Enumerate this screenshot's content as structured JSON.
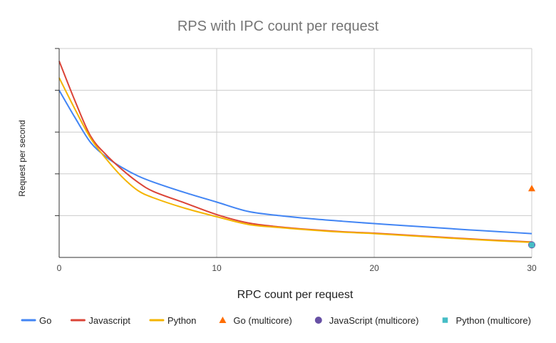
{
  "chart_data": {
    "type": "line",
    "title": "RPS with IPC count per request",
    "xlabel": "RPC count per request",
    "ylabel": "Request per second",
    "xlim": [
      0,
      30
    ],
    "ylim": [
      0,
      100
    ],
    "x_ticks": [
      0,
      10,
      20,
      30
    ],
    "y_tick_labels_shown": false,
    "grid": true,
    "legend_position": "bottom",
    "series": [
      {
        "name": "Go",
        "kind": "line",
        "color": "#4285F4",
        "x": [
          0,
          1,
          2,
          3,
          4,
          5,
          6,
          8,
          10,
          12,
          14,
          16,
          18,
          20,
          22,
          24,
          26,
          28,
          30
        ],
        "y": [
          80,
          67,
          55,
          48,
          43,
          39,
          36,
          31,
          26.5,
          22,
          20,
          18.5,
          17.3,
          16.2,
          15.2,
          14.2,
          13.2,
          12.3,
          11.4
        ]
      },
      {
        "name": "Javascript",
        "kind": "line",
        "color": "#DB4437",
        "x": [
          0,
          1,
          2,
          3,
          4,
          5,
          6,
          8,
          10,
          12,
          14,
          16,
          18,
          20,
          22,
          24,
          26,
          28,
          30
        ],
        "y": [
          94,
          75,
          58,
          49,
          42,
          36,
          31.5,
          26,
          20.5,
          16.5,
          14.6,
          13.3,
          12.3,
          11.6,
          10.7,
          9.8,
          8.9,
          8.1,
          7.4
        ]
      },
      {
        "name": "Python",
        "kind": "line",
        "color": "#F4B400",
        "x": [
          0,
          1,
          2,
          3,
          4,
          5,
          6,
          8,
          10,
          12,
          14,
          16,
          18,
          20,
          22,
          24,
          26,
          28,
          30
        ],
        "y": [
          86,
          71,
          57,
          47,
          38.5,
          32,
          28.5,
          23.5,
          19.5,
          15.8,
          14.3,
          13.1,
          12.1,
          11.4,
          10.5,
          9.6,
          8.7,
          7.9,
          7.2
        ]
      },
      {
        "name": "Go (multicore)",
        "kind": "marker",
        "marker": "triangle",
        "color": "#FF6D01",
        "x": [
          30
        ],
        "y": [
          33
        ]
      },
      {
        "name": "JavaScript (multicore)",
        "kind": "marker",
        "marker": "circle",
        "color": "#6750A4",
        "x": [
          30
        ],
        "y": [
          6
        ]
      },
      {
        "name": "Python (multicore)",
        "kind": "marker",
        "marker": "square",
        "color": "#46BDC6",
        "x": [
          30
        ],
        "y": [
          6
        ]
      }
    ]
  }
}
